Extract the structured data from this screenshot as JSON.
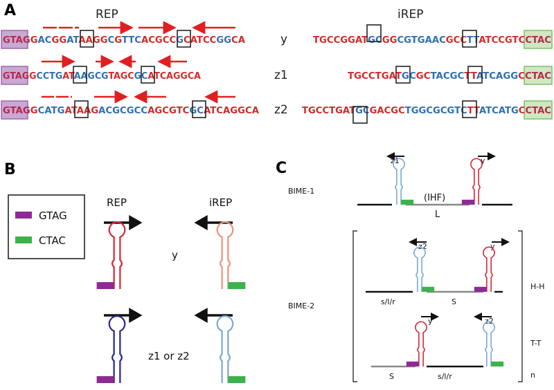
{
  "panels": {
    "a": {
      "letter": "A",
      "rep_header": "REP",
      "irep_header": "iREP",
      "rows": [
        {
          "label": "y",
          "rep_seq": [
            {
              "t": "GTAG",
              "c": "#b42a4e"
            },
            {
              "t": "G",
              "c": "#d42a2a"
            },
            {
              "t": "AC",
              "c": "#2f6fb5"
            },
            {
              "t": "GG",
              "c": "#d42a2a"
            },
            {
              "t": "AT",
              "c": "#2f6fb5"
            },
            {
              "t": "AAGG",
              "c": "#d42a2a"
            },
            {
              "t": "C",
              "c": "#2f6fb5"
            },
            {
              "t": "G",
              "c": "#d42a2a"
            },
            {
              "t": "TTC",
              "c": "#2f6fb5"
            },
            {
              "t": "ACGCC",
              "c": "#d42a2a"
            },
            {
              "t": "G",
              "c": "#2f6fb5"
            },
            {
              "t": "CATCC",
              "c": "#d42a2a"
            },
            {
              "t": "GG",
              "c": "#2f6fb5"
            },
            {
              "t": "CA",
              "c": "#d42a2a"
            }
          ],
          "irep_seq": [
            {
              "t": "TGCCGGAT",
              "c": "#d42a2a"
            },
            {
              "t": "GC",
              "c": "#2f6fb5"
            },
            {
              "t": "GG",
              "c": "#d42a2a"
            },
            {
              "t": "CGTGAAC",
              "c": "#2f6fb5"
            },
            {
              "t": "GCC",
              "c": "#d42a2a"
            },
            {
              "t": "TT",
              "c": "#2f6fb5"
            },
            {
              "t": "ATCCGTC",
              "c": "#d42a2a"
            },
            {
              "t": "CTAC",
              "c": "#b42a4e"
            }
          ]
        },
        {
          "label": "z1",
          "rep_seq": [
            {
              "t": "GTAG",
              "c": "#b42a4e"
            },
            {
              "t": "G",
              "c": "#d42a2a"
            },
            {
              "t": "CCTG",
              "c": "#2f6fb5"
            },
            {
              "t": "AT",
              "c": "#d42a2a"
            },
            {
              "t": "AAGCG",
              "c": "#2f6fb5"
            },
            {
              "t": "TAGC",
              "c": "#d42a2a"
            },
            {
              "t": "GC",
              "c": "#2f6fb5"
            },
            {
              "t": "ATCAGGCA",
              "c": "#d42a2a"
            }
          ],
          "irep_seq": [
            {
              "t": "TGCCTGAT",
              "c": "#d42a2a"
            },
            {
              "t": "GC",
              "c": "#2f6fb5"
            },
            {
              "t": "GC",
              "c": "#d42a2a"
            },
            {
              "t": "TACGC",
              "c": "#2f6fb5"
            },
            {
              "t": "TT",
              "c": "#d42a2a"
            },
            {
              "t": "ATCAGG",
              "c": "#2f6fb5"
            },
            {
              "t": "C",
              "c": "#d42a2a"
            },
            {
              "t": "CTAC",
              "c": "#b42a4e"
            }
          ]
        },
        {
          "label": "z2",
          "rep_seq": [
            {
              "t": "GTAG",
              "c": "#b42a4e"
            },
            {
              "t": "G",
              "c": "#d42a2a"
            },
            {
              "t": "CATG",
              "c": "#2f6fb5"
            },
            {
              "t": "ATAAG",
              "c": "#d42a2a"
            },
            {
              "t": "ACGCGCC",
              "c": "#2f6fb5"
            },
            {
              "t": "AGCGTC",
              "c": "#d42a2a"
            },
            {
              "t": "GC",
              "c": "#2f6fb5"
            },
            {
              "t": "ATCAGGCA",
              "c": "#d42a2a"
            }
          ],
          "irep_seq": [
            {
              "t": "TGCCTGAT",
              "c": "#d42a2a"
            },
            {
              "t": "GC",
              "c": "#2f6fb5"
            },
            {
              "t": "GACGC",
              "c": "#d42a2a"
            },
            {
              "t": "TGGCGCGTC",
              "c": "#2f6fb5"
            },
            {
              "t": "TT",
              "c": "#d42a2a"
            },
            {
              "t": "ATCATG",
              "c": "#2f6fb5"
            },
            {
              "t": "C",
              "c": "#d42a2a"
            },
            {
              "t": "CTAC",
              "c": "#b42a4e"
            }
          ]
        }
      ]
    },
    "b": {
      "letter": "B",
      "legend": [
        {
          "label": "GTAG",
          "color": "#8e2a96"
        },
        {
          "label": "CTAC",
          "color": "#3bb34a"
        }
      ],
      "rep_header": "REP",
      "irep_header": "iREP",
      "row1_label": "y",
      "row2_label": "z1 or z2",
      "colors": {
        "rep_y": "#d42a3a",
        "irep_y": "#e8957a",
        "rep_z": "#2a2a8e",
        "irep_z": "#7aa8d8"
      }
    },
    "c": {
      "letter": "C",
      "bime1": {
        "name": "BIME-1",
        "left_hairpin": "z1",
        "right_hairpin": "y",
        "middle_label": "(IHF)",
        "spacer_label": "L"
      },
      "bime2": {
        "name": "BIME-2",
        "hh": {
          "orientation": "H-H",
          "left_hairpin": "z2",
          "right_hairpin": "y",
          "left_label": "s/l/r",
          "spacer_label": "S"
        },
        "tt": {
          "orientation": "T-T",
          "left_hairpin": "y",
          "right_hairpin": "z2",
          "left_label": "S",
          "spacer_label": "s/l/r"
        },
        "repeat_label": "n"
      }
    }
  }
}
